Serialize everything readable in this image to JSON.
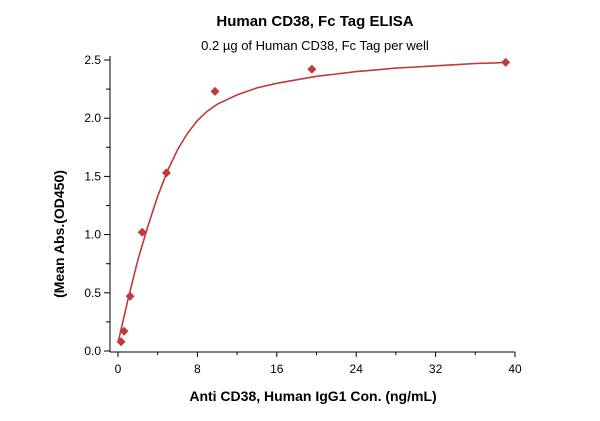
{
  "chart_data": {
    "type": "scatter",
    "title": "Human CD38, Fc Tag ELISA",
    "subtitle": "0.2 µg of Human CD38, Fc Tag per well",
    "xlabel": "Anti CD38, Human IgG1 Con. (ng/mL)",
    "ylabel": "(Mean Abs.(OD450)",
    "xlim": [
      0,
      40
    ],
    "ylim": [
      0,
      2.5
    ],
    "x_ticks": [
      0,
      8,
      16,
      24,
      32,
      40
    ],
    "y_ticks": [
      0.0,
      0.5,
      1.0,
      1.5,
      2.0,
      2.5
    ],
    "x_tick_labels": [
      "0",
      "8",
      "16",
      "24",
      "32",
      "40"
    ],
    "y_tick_labels": [
      "0.0",
      "0.5",
      "1.0",
      "1.5",
      "2.0",
      "2.5"
    ],
    "grid": false,
    "legend": false,
    "colors": {
      "series": "#c0393b"
    },
    "series": [
      {
        "marker": "diamond",
        "x": [
          0.31,
          0.61,
          1.22,
          2.44,
          4.88,
          9.77,
          19.53,
          39.06
        ],
        "y": [
          0.08,
          0.17,
          0.47,
          1.02,
          1.53,
          2.23,
          2.42,
          2.48
        ]
      }
    ],
    "fit_curve": {
      "x": [
        0,
        1,
        2,
        3,
        4,
        5,
        6,
        7,
        8,
        9,
        10,
        12,
        14,
        16,
        18,
        20,
        22,
        24,
        26,
        28,
        30,
        32,
        34,
        36,
        38,
        39.06
      ],
      "y": [
        0.07,
        0.44,
        0.78,
        1.07,
        1.33,
        1.55,
        1.73,
        1.87,
        1.98,
        2.06,
        2.12,
        2.2,
        2.26,
        2.3,
        2.33,
        2.36,
        2.38,
        2.4,
        2.415,
        2.43,
        2.44,
        2.45,
        2.46,
        2.47,
        2.475,
        2.48
      ]
    }
  }
}
